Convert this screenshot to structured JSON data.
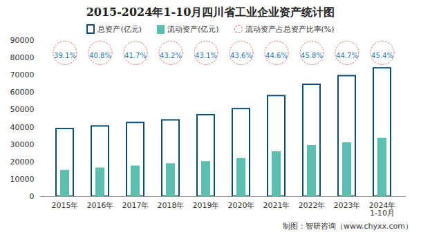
{
  "chart_data": {
    "type": "bar",
    "title": "2015-2024年1-10月四川省工业企业资产统计图",
    "categories": [
      "2015年",
      "2016年",
      "2017年",
      "2018年",
      "2019年",
      "2020年",
      "2021年",
      "2022年",
      "2023年",
      "2024年\n1-10月"
    ],
    "series": [
      {
        "name": "总资产(亿元)",
        "type": "bar",
        "color": "#0e4d6e",
        "values": [
          39000,
          40500,
          42500,
          44000,
          47000,
          50500,
          58000,
          64500,
          69500,
          74000
        ]
      },
      {
        "name": "流动资产(亿元)",
        "type": "bar",
        "color": "#5bbfb0",
        "values": [
          15200,
          16500,
          17700,
          19000,
          20200,
          22000,
          25900,
          29500,
          31100,
          33600
        ]
      },
      {
        "name": "流动资产占总资产比率(%)",
        "type": "label",
        "color": "#e05050",
        "marker": "circle",
        "values": [
          39.1,
          40.8,
          41.7,
          43.2,
          43.1,
          43.6,
          44.6,
          45.8,
          44.7,
          45.4
        ],
        "value_labels": [
          "39.1%",
          "40.8%",
          "41.7%",
          "43.2%",
          "43.1%",
          "43.6%",
          "44.6%",
          "45.8%",
          "44.7%",
          "45.4%"
        ]
      }
    ],
    "ylim": [
      0,
      90000
    ],
    "yticks": [
      0,
      10000,
      20000,
      30000,
      40000,
      50000,
      60000,
      70000,
      80000,
      90000
    ],
    "grid": false,
    "legend": "top",
    "source": "制图：智研咨询（www.chyxx.com）"
  }
}
